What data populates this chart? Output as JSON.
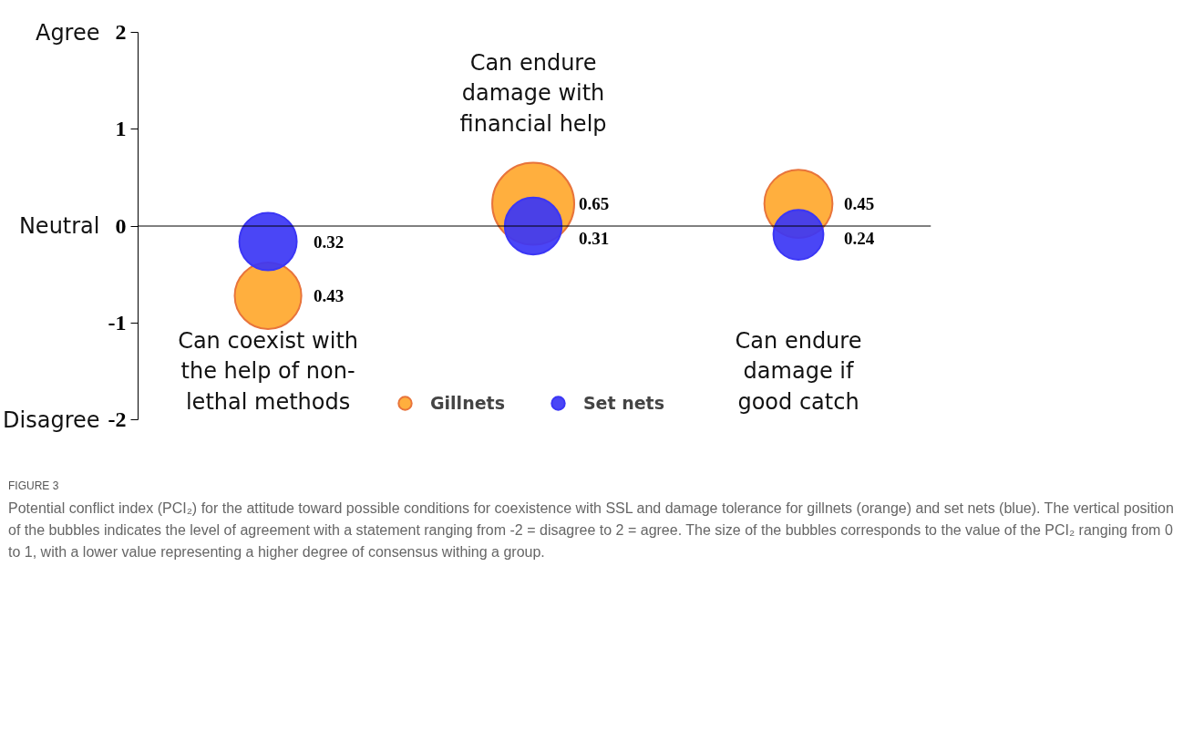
{
  "chart_data": {
    "type": "bubble",
    "categories": [
      "Can coexist with the help of non-lethal methods",
      "Can endure damage with financial help",
      "Can endure damage if good catch"
    ],
    "series": [
      {
        "name": "Gillnets",
        "color": "#ffa82e",
        "values": [
          -0.72,
          0.23,
          0.23
        ],
        "sizes": [
          0.66,
          1,
          0.69
        ]
      },
      {
        "name": "Set nets",
        "color": "#3b36f5",
        "values": [
          -0.16,
          0,
          -0.09
        ],
        "sizes": [
          0.49,
          0.48,
          0.37
        ]
      }
    ],
    "ylim": [
      -2,
      2
    ],
    "yticks": [
      2,
      1,
      0,
      -1,
      -2
    ],
    "ref_lines": [
      {
        "axis": "y",
        "value": 0,
        "color": "#000000"
      }
    ],
    "legend": "bottom",
    "annotations": [
      {
        "text": "0.43",
        "x": "Can coexist with the help of non-lethal methods",
        "y": -0.72
      },
      {
        "text": "0.32",
        "x": "Can coexist with the help of non-lethal methods",
        "y": -0.16
      },
      {
        "text": "0.65",
        "x": "Can endure damage with financial help",
        "y": 0.23
      },
      {
        "text": "0.31",
        "x": "Can endure damage with financial help",
        "y": 0
      },
      {
        "text": "0.45",
        "x": "Can endure damage if good catch",
        "y": 0.23
      },
      {
        "text": "0.24",
        "x": "Can endure damage if good catch",
        "y": -0.09
      },
      "Agree",
      "Neutral",
      "Disagree",
      "FIGURE 3",
      "Potential conflict index (PCI₂) for the attitude toward possible conditions for coexistence with SSL and damage tolerance for gillnets (orange) and set nets (blue). The vertical position of the bubbles indicates the level of agreement with a statement ranging from -2 = disagree to 2 = agree. The size of the bubbles corresponds to the value of the PCI₂ ranging from 0 to 1, with a lower value representing a higher degree of consensus withing a group."
    ]
  }
}
